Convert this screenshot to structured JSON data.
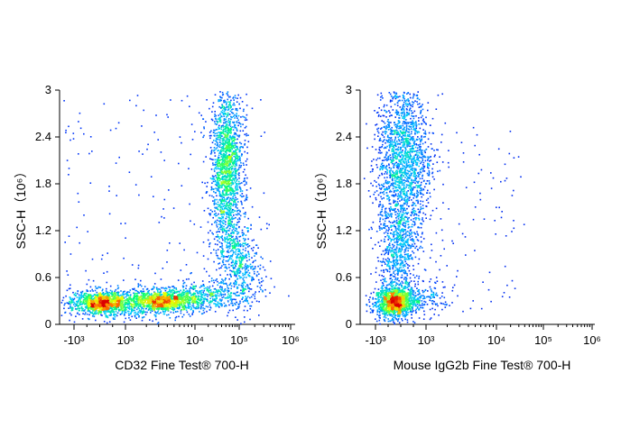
{
  "chart_data": [
    {
      "type": "scatter",
      "subtype": "flow-cytometry-density-plot",
      "xlabel": "CD32 Fine Test® 700-H",
      "ylabel": "SSC-H（10⁶）",
      "x_scale": "biexponential",
      "x_ticks": [
        "-10³",
        "10³",
        "10⁴",
        "10⁵",
        "10⁶"
      ],
      "y_ticks": [
        "0",
        "0.6",
        "1.2",
        "1.8",
        "2.4",
        "3"
      ],
      "ylim": [
        0,
        3
      ],
      "grid": false,
      "populations": [
        {
          "x": 200,
          "y": 0.28,
          "peak_density": "high"
        },
        {
          "x": 2500,
          "y": 0.3,
          "peak_density": "high"
        },
        {
          "x": 60000,
          "y": 1.95,
          "peak_density": "medium"
        }
      ]
    },
    {
      "type": "scatter",
      "subtype": "flow-cytometry-density-plot",
      "xlabel": "Mouse IgG2b Fine Test® 700-H",
      "ylabel": "SSC-H（10⁶）",
      "x_scale": "biexponential",
      "x_ticks": [
        "-10³",
        "10³",
        "10⁴",
        "10⁵",
        "10⁶"
      ],
      "y_ticks": [
        "0",
        "0.6",
        "1.2",
        "1.8",
        "2.4",
        "3"
      ],
      "ylim": [
        0,
        3
      ],
      "grid": false,
      "populations": [
        {
          "x": 150,
          "y": 0.28,
          "peak_density": "high"
        },
        {
          "x": 350,
          "y": 1.95,
          "peak_density": "medium"
        }
      ]
    }
  ]
}
